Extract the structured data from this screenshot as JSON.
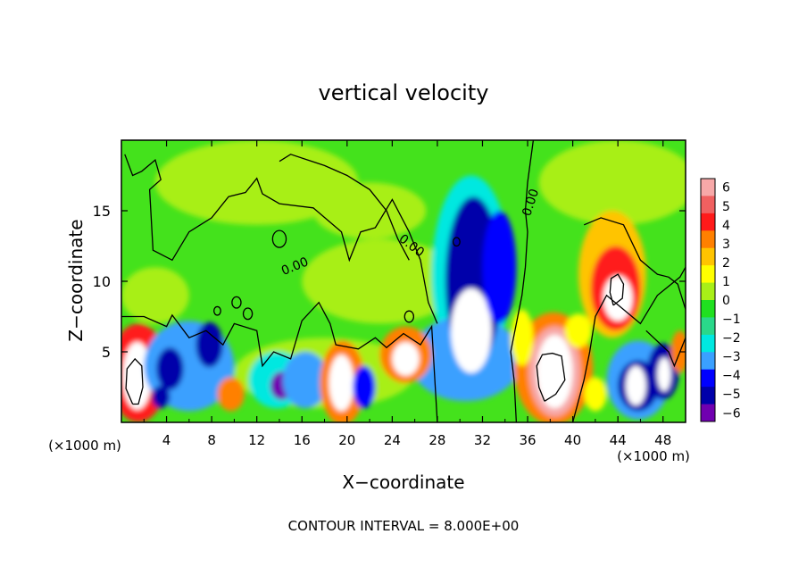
{
  "chart_data": {
    "type": "heatmap",
    "title": "vertical velocity",
    "xlabel": "X−coordinate",
    "ylabel": "Z−coordinate",
    "x_unit_left": "(×1000 m)",
    "x_unit_right": "(×1000 m)",
    "footer": "CONTOUR INTERVAL = 8.000E+00",
    "xlim": [
      0,
      50
    ],
    "ylim": [
      0,
      20
    ],
    "x_ticks": [
      "4",
      "8",
      "12",
      "16",
      "20",
      "24",
      "28",
      "32",
      "36",
      "40",
      "44",
      "48"
    ],
    "y_ticks": [
      "5",
      "10",
      "15"
    ],
    "contour_labels": [
      "0.00",
      "0.00",
      "0.00"
    ],
    "colorbar": {
      "ticks": [
        "6",
        "5",
        "4",
        "3",
        "2",
        "1",
        "0",
        "−1",
        "−2",
        "−3",
        "−4",
        "−5",
        "−6"
      ],
      "range": [
        -6,
        6
      ],
      "colors": [
        "#f7a8a8",
        "#f06060",
        "#ff1a1a",
        "#ff8000",
        "#ffc400",
        "#ffff00",
        "#a8ef18",
        "#20e020",
        "#2ad88a",
        "#00e8e0",
        "#3aa0ff",
        "#0000ff",
        "#0000aa",
        "#7000b0"
      ]
    }
  }
}
